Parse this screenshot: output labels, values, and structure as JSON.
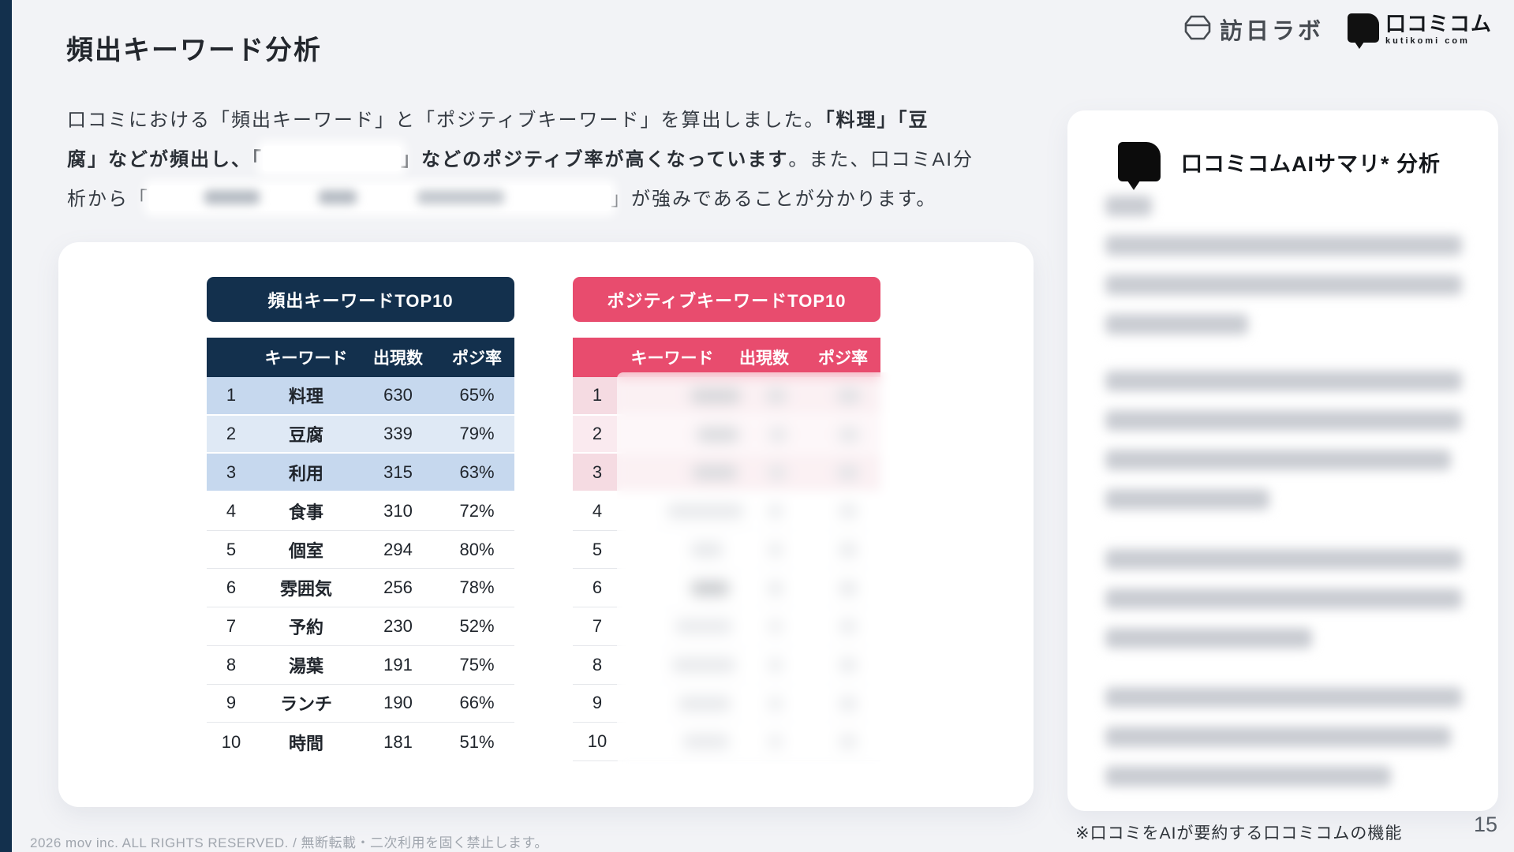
{
  "page": {
    "title": "頻出キーワード分析",
    "page_number": "15",
    "footnote": "※口コミをAIが要約する口コミコムの機能",
    "footer": "2026 mov inc. ALL RIGHTS RESERVED. / 無断転載・二次利用を固く禁止します。"
  },
  "logos": {
    "visit_lab": "訪日ラボ",
    "kutikomi": "口コミコム",
    "kutikomi_sub": "kutikomi com"
  },
  "intro": {
    "l1a": "口コミにおける「頻出キーワード」と「ポジティブキーワード」を算出しました。",
    "l1b": "「料理」「豆",
    "l2a": "腐」などが頻出し、「",
    "l2b": "」などのポジティブ率が高くなっています",
    "l2c": "。また、口コミAI分",
    "l3a": "析から「",
    "l3b": "」が強みであることが分かります。"
  },
  "freq_table": {
    "title": "頻出キーワードTOP10",
    "columns": [
      "キーワード",
      "出現数",
      "ポジ率"
    ],
    "rows": [
      {
        "rank": "1",
        "keyword": "料理",
        "count": "630",
        "positive": "65%"
      },
      {
        "rank": "2",
        "keyword": "豆腐",
        "count": "339",
        "positive": "79%"
      },
      {
        "rank": "3",
        "keyword": "利用",
        "count": "315",
        "positive": "63%"
      },
      {
        "rank": "4",
        "keyword": "食事",
        "count": "310",
        "positive": "72%"
      },
      {
        "rank": "5",
        "keyword": "個室",
        "count": "294",
        "positive": "80%"
      },
      {
        "rank": "6",
        "keyword": "雰囲気",
        "count": "256",
        "positive": "78%"
      },
      {
        "rank": "7",
        "keyword": "予約",
        "count": "230",
        "positive": "52%"
      },
      {
        "rank": "8",
        "keyword": "湯葉",
        "count": "191",
        "positive": "75%"
      },
      {
        "rank": "9",
        "keyword": "ランチ",
        "count": "190",
        "positive": "66%"
      },
      {
        "rank": "10",
        "keyword": "時間",
        "count": "181",
        "positive": "51%"
      }
    ]
  },
  "positive_table": {
    "title": "ポジティブキーワードTOP10",
    "columns": [
      "キーワード",
      "出現数",
      "ポジ率"
    ],
    "redacted": true,
    "rows": [
      {
        "rank": "1"
      },
      {
        "rank": "2"
      },
      {
        "rank": "3"
      },
      {
        "rank": "4"
      },
      {
        "rank": "5"
      },
      {
        "rank": "6"
      },
      {
        "rank": "7"
      },
      {
        "rank": "8"
      },
      {
        "rank": "9"
      },
      {
        "rank": "10"
      }
    ]
  },
  "sidebar": {
    "title": "口コミコムAIサマリ* 分析",
    "redacted": true
  },
  "colors": {
    "navy": "#13304d",
    "pink": "#e84c6e",
    "highlight_blue": "#c6d8ee",
    "highlight_blue_light": "#dfe9f5",
    "highlight_pink": "#f5dbe2",
    "highlight_pink_light": "#faeaef"
  }
}
